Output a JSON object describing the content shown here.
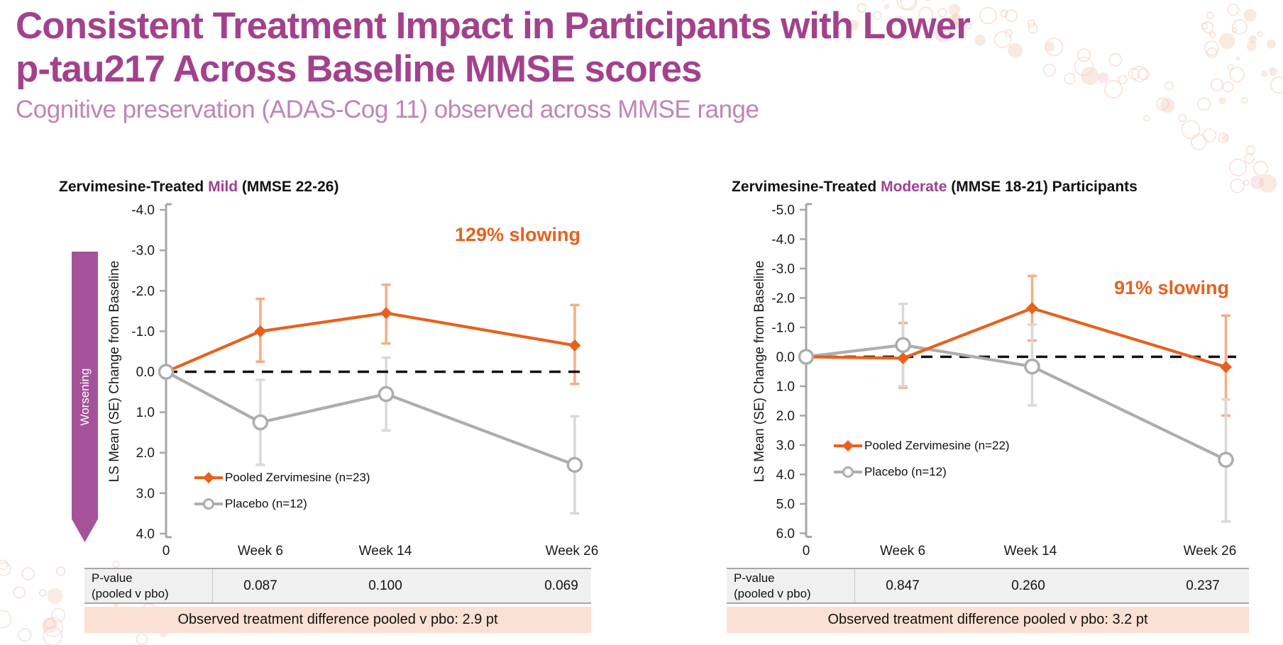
{
  "header": {
    "title_line1": "Consistent Treatment Impact in Participants with Lower",
    "title_line2": "p-tau217 Across Baseline MMSE scores",
    "subtitle": "Cognitive preservation (ADAS-Cog 11) observed across MMSE range"
  },
  "worsening_label": "Worsening",
  "colors": {
    "title_purple": "#A3418D",
    "subtitle_purple": "#C184B7",
    "highlight_purple": "#A14094",
    "worsening_purple": "#A4539B",
    "accent_orange": "#E8611C",
    "error_orange": "#F4AE85",
    "line_gray": "#ADADAD",
    "error_gray": "#D9D9D9",
    "axis_gray": "#A6A6A6",
    "table_bg": "#F0F0F0",
    "diff_bg": "#FAE1D3"
  },
  "chart_data": [
    {
      "type": "line",
      "title_prefix": "Zervimesine-Treated ",
      "title_highlight": "Mild",
      "title_suffix": " (MMSE 22-26)",
      "annotation": "129% slowing",
      "ylabel": "LS Mean (SE) Change from Baseline",
      "y_axis_reversed": true,
      "ylim": [
        -4.0,
        4.0
      ],
      "y_tick_labels": [
        "-4.0",
        "-3.0",
        "-2.0",
        "-1.0",
        "0.0",
        "1.0",
        "2.0",
        "3.0",
        "4.0"
      ],
      "baseline_value": 0.0,
      "x_weeks": [
        0,
        6,
        14,
        26
      ],
      "x_tick_labels": [
        "0",
        "Week 6",
        "Week 14",
        "Week 26"
      ],
      "series": [
        {
          "name": "Pooled Zervimesine (n=23)",
          "marker": "diamond",
          "color": "#E8611C",
          "err_color": "#F4AE85",
          "values": [
            0,
            -1.0,
            -1.45,
            -0.65
          ],
          "err_ranges": [
            null,
            [
              -1.8,
              -0.25
            ],
            [
              -2.15,
              -0.7
            ],
            [
              -1.65,
              0.3
            ]
          ]
        },
        {
          "name": "Placebo (n=12)",
          "marker": "circle",
          "color": "#ADADAD",
          "err_color": "#D9D9D9",
          "values": [
            0,
            1.25,
            0.55,
            2.3
          ],
          "err_ranges": [
            null,
            [
              0.2,
              2.3
            ],
            [
              -0.35,
              1.45
            ],
            [
              1.1,
              3.5
            ]
          ]
        }
      ],
      "p_table": {
        "label_line1": "P-value",
        "label_line2": "(pooled v pbo)",
        "values": [
          "0.087",
          "0.100",
          "0.069"
        ]
      },
      "diff_text": "Observed treatment difference pooled v pbo: 2.9 pt"
    },
    {
      "type": "line",
      "title_prefix": "Zervimesine-Treated ",
      "title_highlight": "Moderate",
      "title_suffix": " (MMSE 18-21) Participants",
      "annotation": "91% slowing",
      "ylabel": "LS Mean (SE) Change from Baseline",
      "y_axis_reversed": true,
      "ylim": [
        -5.0,
        6.0
      ],
      "y_tick_labels": [
        "-5.0",
        "-4.0",
        "-3.0",
        "-2.0",
        "-1.0",
        "0.0",
        "1.0",
        "2.0",
        "3.0",
        "4.0",
        "5.0",
        "6.0"
      ],
      "baseline_value": 0.0,
      "x_weeks": [
        0,
        6,
        14,
        26
      ],
      "x_tick_labels": [
        "0",
        "Week 6",
        "Week 14",
        "Week 26"
      ],
      "series": [
        {
          "name": "Pooled Zervimesine (n=22)",
          "marker": "diamond",
          "color": "#E8611C",
          "err_color": "#F4AE85",
          "values": [
            0,
            0.05,
            -1.65,
            0.35
          ],
          "err_ranges": [
            null,
            [
              -1.15,
              1.05
            ],
            [
              -2.75,
              -0.55
            ],
            [
              -1.4,
              2.0
            ]
          ]
        },
        {
          "name": "Placebo (n=12)",
          "marker": "circle",
          "color": "#ADADAD",
          "err_color": "#D9D9D9",
          "values": [
            0,
            -0.4,
            0.33,
            3.5
          ],
          "err_ranges": [
            null,
            [
              -1.8,
              1.0
            ],
            [
              -1.1,
              1.65
            ],
            [
              1.45,
              5.6
            ]
          ]
        }
      ],
      "p_table": {
        "label_line1": "P-value",
        "label_line2": "(pooled v pbo)",
        "values": [
          "0.847",
          "0.260",
          "0.237"
        ]
      },
      "diff_text": "Observed treatment difference pooled v pbo: 3.2 pt"
    }
  ]
}
